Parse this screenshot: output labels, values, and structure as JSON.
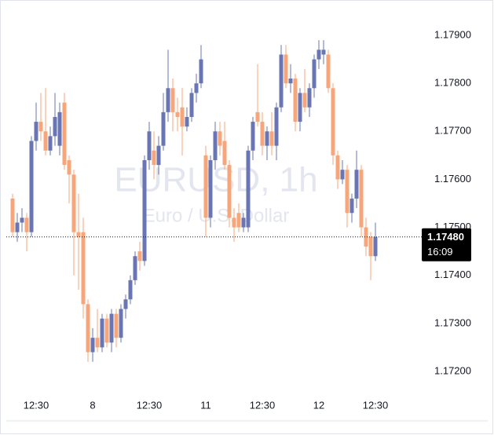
{
  "chart_data": {
    "type": "candlestick",
    "title": "EURUSD, 1h",
    "subtitle": "Euro / U.S. Dollar",
    "up_color": "#6a75b3",
    "down_color": "#f7a57a",
    "categories": [
      null,
      null,
      null,
      null,
      null,
      "12:30",
      null,
      null,
      null,
      null,
      null,
      null,
      null,
      null,
      null,
      null,
      null,
      "8",
      null,
      null,
      null,
      null,
      null,
      null,
      null,
      null,
      null,
      null,
      null,
      "12:30",
      null,
      null,
      null,
      null,
      null,
      null,
      null,
      null,
      null,
      null,
      null,
      "11",
      null,
      null,
      null,
      null,
      null,
      null,
      null,
      null,
      null,
      null,
      null,
      "12:30",
      null,
      null,
      null,
      null,
      null,
      null,
      null,
      null,
      null,
      null,
      null,
      "12",
      null,
      null,
      null,
      null,
      null,
      null,
      null,
      null,
      null,
      null,
      null,
      "12:30"
    ],
    "candles": [
      [
        1.1756,
        1.1757,
        1.1748,
        1.1749
      ],
      [
        1.1749,
        1.1753,
        1.1747,
        1.1751
      ],
      [
        1.1751,
        1.1754,
        1.1749,
        1.1752
      ],
      [
        1.1752,
        1.1753,
        1.1745,
        1.1749
      ],
      [
        1.1749,
        1.1769,
        1.1748,
        1.1768
      ],
      [
        1.1768,
        1.1776,
        1.1766,
        1.1772
      ],
      [
        1.1772,
        1.1778,
        1.1768,
        1.177
      ],
      [
        1.177,
        1.1779,
        1.1765,
        1.1766
      ],
      [
        1.1766,
        1.1771,
        1.1765,
        1.1769
      ],
      [
        1.1769,
        1.1778,
        1.1767,
        1.1773
      ],
      [
        1.1767,
        1.1776,
        1.1765,
        1.1774
      ],
      [
        1.1776,
        1.1778,
        1.1762,
        1.1763
      ],
      [
        1.1764,
        1.1765,
        1.1755,
        1.1761
      ],
      [
        1.1761,
        1.1762,
        1.174,
        1.1749
      ],
      [
        1.1749,
        1.1757,
        1.1737,
        1.1748
      ],
      [
        1.1749,
        1.1752,
        1.1731,
        1.1734
      ],
      [
        1.1734,
        1.1735,
        1.1722,
        1.1724
      ],
      [
        1.1724,
        1.1729,
        1.1722,
        1.1727
      ],
      [
        1.1727,
        1.1733,
        1.1724,
        1.1725
      ],
      [
        1.1725,
        1.1732,
        1.1724,
        1.1731
      ],
      [
        1.1731,
        1.1732,
        1.1725,
        1.1726
      ],
      [
        1.1726,
        1.1733,
        1.1724,
        1.1732
      ],
      [
        1.1732,
        1.1733,
        1.1725,
        1.1727
      ],
      [
        1.1727,
        1.1734,
        1.1726,
        1.1733
      ],
      [
        1.1733,
        1.1736,
        1.1731,
        1.1735
      ],
      [
        1.1735,
        1.174,
        1.1734,
        1.1739
      ],
      [
        1.1739,
        1.1745,
        1.1738,
        1.1744
      ],
      [
        1.1745,
        1.1747,
        1.1741,
        1.1743
      ],
      [
        1.1743,
        1.1765,
        1.1742,
        1.1764
      ],
      [
        1.1764,
        1.1772,
        1.1762,
        1.177
      ],
      [
        1.1766,
        1.177,
        1.176,
        1.1763
      ],
      [
        1.1763,
        1.1769,
        1.1761,
        1.1767
      ],
      [
        1.1767,
        1.1778,
        1.1766,
        1.1774
      ],
      [
        1.1774,
        1.1787,
        1.1772,
        1.1779
      ],
      [
        1.1779,
        1.1781,
        1.177,
        1.1774
      ],
      [
        1.1774,
        1.1777,
        1.177,
        1.1773
      ],
      [
        1.1775,
        1.1779,
        1.1765,
        1.1771
      ],
      [
        1.1771,
        1.1775,
        1.177,
        1.1773
      ],
      [
        1.1773,
        1.1779,
        1.1772,
        1.1778
      ],
      [
        1.1778,
        1.1782,
        1.1776,
        1.178
      ],
      [
        1.178,
        1.1788,
        1.1779,
        1.1785
      ],
      [
        1.1765,
        1.1767,
        1.1748,
        1.1752
      ],
      [
        1.1752,
        1.1765,
        1.175,
        1.1764
      ],
      [
        1.1764,
        1.1772,
        1.1762,
        1.177
      ],
      [
        1.177,
        1.1772,
        1.1765,
        1.1767
      ],
      [
        1.1768,
        1.1772,
        1.1762,
        1.1763
      ],
      [
        1.1763,
        1.1764,
        1.175,
        1.1752
      ],
      [
        1.1752,
        1.1754,
        1.1747,
        1.175
      ],
      [
        1.1753,
        1.1755,
        1.1749,
        1.175
      ],
      [
        1.175,
        1.1753,
        1.1749,
        1.1752
      ],
      [
        1.175,
        1.1767,
        1.1749,
        1.1766
      ],
      [
        1.1766,
        1.1773,
        1.1764,
        1.1772
      ],
      [
        1.1774,
        1.1784,
        1.1771,
        1.1772
      ],
      [
        1.1772,
        1.1774,
        1.1765,
        1.1767
      ],
      [
        1.1767,
        1.1771,
        1.1764,
        1.177
      ],
      [
        1.177,
        1.1774,
        1.1765,
        1.1767
      ],
      [
        1.1767,
        1.1776,
        1.1764,
        1.1775
      ],
      [
        1.1775,
        1.1788,
        1.1774,
        1.1786
      ],
      [
        1.1786,
        1.1788,
        1.1779,
        1.178
      ],
      [
        1.178,
        1.1784,
        1.1778,
        1.1781
      ],
      [
        1.1781,
        1.1782,
        1.177,
        1.1772
      ],
      [
        1.1772,
        1.1779,
        1.177,
        1.1778
      ],
      [
        1.1778,
        1.1783,
        1.1774,
        1.1775
      ],
      [
        1.1775,
        1.178,
        1.1773,
        1.1779
      ],
      [
        1.1779,
        1.1786,
        1.1777,
        1.1785
      ],
      [
        1.1785,
        1.1789,
        1.1783,
        1.1787
      ],
      [
        1.1786,
        1.1789,
        1.1784,
        1.1787
      ],
      [
        1.1786,
        1.1787,
        1.1778,
        1.1779
      ],
      [
        1.1779,
        1.178,
        1.1763,
        1.1765
      ],
      [
        1.1765,
        1.1766,
        1.1758,
        1.176
      ],
      [
        1.176,
        1.1764,
        1.1759,
        1.1762
      ],
      [
        1.1762,
        1.1763,
        1.175,
        1.1753
      ],
      [
        1.1753,
        1.1757,
        1.1751,
        1.1756
      ],
      [
        1.1756,
        1.1766,
        1.1754,
        1.1762
      ],
      [
        1.1762,
        1.1763,
        1.1748,
        1.175
      ],
      [
        1.175,
        1.1752,
        1.1744,
        1.1746
      ],
      [
        1.1748,
        1.1749,
        1.1739,
        1.1744
      ],
      [
        1.1744,
        1.1751,
        1.1743,
        1.1748
      ]
    ],
    "ylim": [
      1.1714,
      1.1798
    ],
    "yticks": [
      {
        "value": 1.179,
        "label": "1.17900"
      },
      {
        "value": 1.178,
        "label": "1.17800"
      },
      {
        "value": 1.177,
        "label": "1.17700"
      },
      {
        "value": 1.176,
        "label": "1.17600"
      },
      {
        "value": 1.175,
        "label": "1.17500"
      },
      {
        "value": 1.174,
        "label": "1.17400"
      },
      {
        "value": 1.173,
        "label": "1.17300"
      },
      {
        "value": 1.172,
        "label": "1.17200"
      }
    ],
    "last_price": {
      "value": 1.1748,
      "label": "1.17480"
    },
    "countdown": "16:09"
  }
}
